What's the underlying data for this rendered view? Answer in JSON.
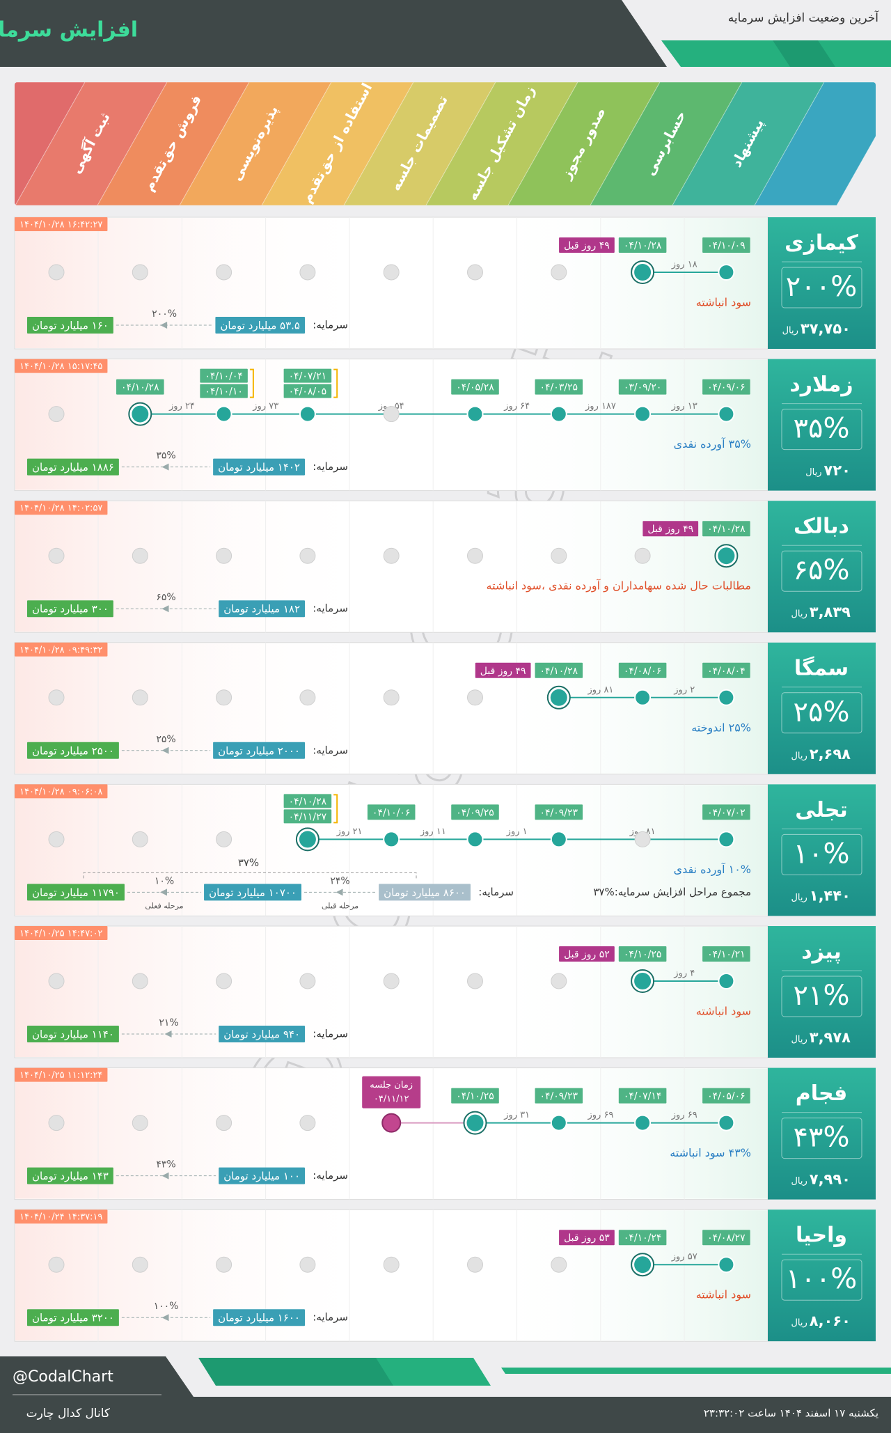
{
  "header": {
    "title": "افزایش سرمایه",
    "subtitle": "آخرین وضعیت افزایش سرمایه"
  },
  "stages": [
    "ثبت آگهی",
    "فروش حق‌تقدم",
    "پذیره‌نویسی",
    "استفاده از حق‌تقدم",
    "تصمیمات جلسه",
    "زمان تشکیل جلسه",
    "صدور مجوز",
    "حسابرسی",
    "پیشنهاد"
  ],
  "labels": {
    "capital": "سرمایه:",
    "rial": "ریال"
  },
  "watermark": "@CodalChart",
  "companies": [
    {
      "name": "کیمازی",
      "change": "۲۰۰%",
      "price": "۳۷,۷۵۰",
      "updated": "۱۴۰۴/۱۰/۲۸ ۱۶:۴۲:۲۷",
      "description": "سود انباشته",
      "description_color": "#e0502a",
      "capital": {
        "before": "۵۳.۵ میلیارد تومان",
        "after": "۱۶۰ میلیارد تومان",
        "change": "۲۰۰%"
      },
      "timeline": [
        null,
        null,
        null,
        null,
        null,
        null,
        null,
        {
          "status": "current",
          "dates": [
            "۰۴/۱۰/۲۸"
          ],
          "badge": "۴۹ روز قبل",
          "gap": "۱۸ روز"
        },
        {
          "status": "done",
          "dates": [
            "۰۴/۱۰/۰۹"
          ]
        }
      ]
    },
    {
      "name": "زملارد",
      "change": "۳۵%",
      "price": "۷۲۰",
      "updated": "۱۴۰۴/۱۰/۲۸ ۱۵:۱۷:۴۵",
      "description": "۳۵% آورده نقدی",
      "description_color": "#2a7fc4",
      "capital": {
        "before": "۱۴۰۲ میلیارد تومان",
        "after": "۱۸۸۶ میلیارد تومان",
        "change": "۳۵%"
      },
      "timeline": [
        null,
        {
          "status": "current",
          "dates": [
            "۰۴/۱۰/۲۸"
          ],
          "gap": "۲۴ روز"
        },
        {
          "status": "done",
          "dates": [
            "۰۴/۱۰/۰۴",
            "۰۴/۱۰/۱۰"
          ],
          "gap": "۷۳ روز"
        },
        {
          "status": "done",
          "dates": [
            "۰۴/۰۷/۲۱",
            "۰۴/۰۸/۰۵"
          ],
          "gap": "۵۴ روز"
        },
        null,
        {
          "status": "done",
          "dates": [
            "۰۴/۰۵/۲۸"
          ],
          "gap": "۶۴ روز"
        },
        {
          "status": "done",
          "dates": [
            "۰۴/۰۳/۲۵"
          ],
          "gap": "۱۸۷ روز"
        },
        {
          "status": "done",
          "dates": [
            "۰۳/۰۹/۲۰"
          ],
          "gap": "۱۳ روز"
        },
        {
          "status": "done",
          "dates": [
            "۰۴/۰۹/۰۶"
          ]
        }
      ]
    },
    {
      "name": "دبالک",
      "change": "۶۵%",
      "price": "۳,۸۳۹",
      "updated": "۱۴۰۴/۱۰/۲۸ ۱۴:۰۲:۵۷",
      "description": "مطالبات حال شده سهامداران و آورده نقدی ،سود انباشته",
      "description_color": "#e0502a",
      "capital": {
        "before": "۱۸۲ میلیارد تومان",
        "after": "۳۰۰ میلیارد تومان",
        "change": "۶۵%"
      },
      "timeline": [
        null,
        null,
        null,
        null,
        null,
        null,
        null,
        null,
        {
          "status": "current",
          "dates": [
            "۰۴/۱۰/۲۸"
          ],
          "badge": "۴۹ روز قبل"
        }
      ]
    },
    {
      "name": "سمگا",
      "change": "۲۵%",
      "price": "۲,۶۹۸",
      "updated": "۱۴۰۴/۱۰/۲۸ ۰۹:۴۹:۳۲",
      "description": "۲۵% اندوخته",
      "description_color": "#2a7fc4",
      "capital": {
        "before": "۲۰۰۰ میلیارد تومان",
        "after": "۲۵۰۰ میلیارد تومان",
        "change": "۲۵%"
      },
      "timeline": [
        null,
        null,
        null,
        null,
        null,
        null,
        {
          "status": "current",
          "dates": [
            "۰۴/۱۰/۲۸"
          ],
          "badge": "۴۹ روز قبل",
          "gap": "۸۱ روز"
        },
        {
          "status": "done",
          "dates": [
            "۰۴/۰۸/۰۶"
          ],
          "gap": "۲ روز"
        },
        {
          "status": "done",
          "dates": [
            "۰۴/۰۸/۰۴"
          ]
        }
      ]
    },
    {
      "name": "تجلی",
      "change": "۱۰%",
      "price": "۱,۴۴۰",
      "updated": "۱۴۰۴/۱۰/۲۸ ۰۹:۰۶:۰۸",
      "description": "۱۰% آورده نقدی",
      "description_color": "#2a7fc4",
      "summary": "مجموع مراحل افزایش سرمایه:%۳۷",
      "capital": {
        "before": "۸۶۰۰ میلیارد تومان",
        "before_change": "۲۴%",
        "before_note": "مرحله قبلی",
        "current": "۱۰۷۰۰ میلیارد تومان",
        "change": "۱۰%",
        "note": "مرحله فعلی",
        "after": "۱۱۷۹۰ میلیارد تومان",
        "total_change": "۳۷%"
      },
      "timeline": [
        null,
        null,
        null,
        {
          "status": "current",
          "dates": [
            "۰۴/۱۰/۲۸",
            "۰۴/۱۱/۲۷"
          ],
          "gap": "۲۱ روز"
        },
        {
          "status": "done",
          "dates": [
            "۰۴/۱۰/۰۶"
          ],
          "gap": "۱۱ روز"
        },
        {
          "status": "done",
          "dates": [
            "۰۴/۰۹/۲۵"
          ],
          "gap": "۱ روز"
        },
        {
          "status": "done",
          "dates": [
            "۰۴/۰۹/۲۳"
          ],
          "gap": "۸۱ روز"
        },
        null,
        {
          "status": "done",
          "dates": [
            "۰۴/۰۷/۰۲"
          ]
        }
      ]
    },
    {
      "name": "پیزد",
      "change": "۲۱%",
      "price": "۳,۹۷۸",
      "updated": "۱۴۰۴/۱۰/۲۵ ۱۴:۴۷:۰۲",
      "description": "سود انباشته",
      "description_color": "#e0502a",
      "capital": {
        "before": "۹۴۰ میلیارد تومان",
        "after": "۱۱۴۰ میلیارد تومان",
        "change": "۲۱%"
      },
      "timeline": [
        null,
        null,
        null,
        null,
        null,
        null,
        null,
        {
          "status": "current",
          "dates": [
            "۰۴/۱۰/۲۵"
          ],
          "badge": "۵۲ روز قبل",
          "gap": "۴ روز"
        },
        {
          "status": "done",
          "dates": [
            "۰۴/۱۰/۲۱"
          ]
        }
      ]
    },
    {
      "name": "فجام",
      "change": "۴۳%",
      "price": "۷,۹۹۰",
      "updated": "۱۴۰۴/۱۰/۲۵ ۱۱:۱۲:۲۴",
      "description": "۴۳% سود انباشته",
      "description_color": "#2a7fc4",
      "capital": {
        "before": "۱۰۰ میلیارد تومان",
        "after": "۱۴۳ میلیارد تومان",
        "change": "۴۳%"
      },
      "timeline": [
        null,
        null,
        null,
        null,
        {
          "status": "meeting",
          "caption": "زمان جلسه",
          "dates": [
            "۰۴/۱۱/۱۲"
          ]
        },
        {
          "status": "current",
          "dates": [
            "۰۴/۱۰/۲۵"
          ],
          "gap": "۳۱ روز"
        },
        {
          "status": "done",
          "dates": [
            "۰۴/۰۹/۲۳"
          ],
          "gap": "۶۹ روز"
        },
        {
          "status": "done",
          "dates": [
            "۰۴/۰۷/۱۴"
          ],
          "gap": "۶۹ روز"
        },
        {
          "status": "done",
          "dates": [
            "۰۴/۰۵/۰۶"
          ]
        }
      ]
    },
    {
      "name": "واحیا",
      "change": "۱۰۰%",
      "price": "۸,۰۶۰",
      "updated": "۱۴۰۴/۱۰/۲۴ ۱۴:۳۷:۱۹",
      "description": "سود انباشته",
      "description_color": "#e0502a",
      "capital": {
        "before": "۱۶۰۰ میلیارد تومان",
        "after": "۳۲۰۰ میلیارد تومان",
        "change": "۱۰۰%"
      },
      "timeline": [
        null,
        null,
        null,
        null,
        null,
        null,
        null,
        {
          "status": "current",
          "dates": [
            "۰۴/۱۰/۲۴"
          ],
          "badge": "۵۳ روز قبل",
          "gap": "۵۷ روز"
        },
        {
          "status": "done",
          "dates": [
            "۰۴/۰۸/۲۷"
          ]
        }
      ]
    }
  ],
  "footer": {
    "handle": "@CodalChart",
    "channel": "کانال کدال چارت",
    "datetime": "یکشنبه ۱۷ اسفند ۱۴۰۴ ساعت ۲۳:۳۲:۰۲"
  }
}
